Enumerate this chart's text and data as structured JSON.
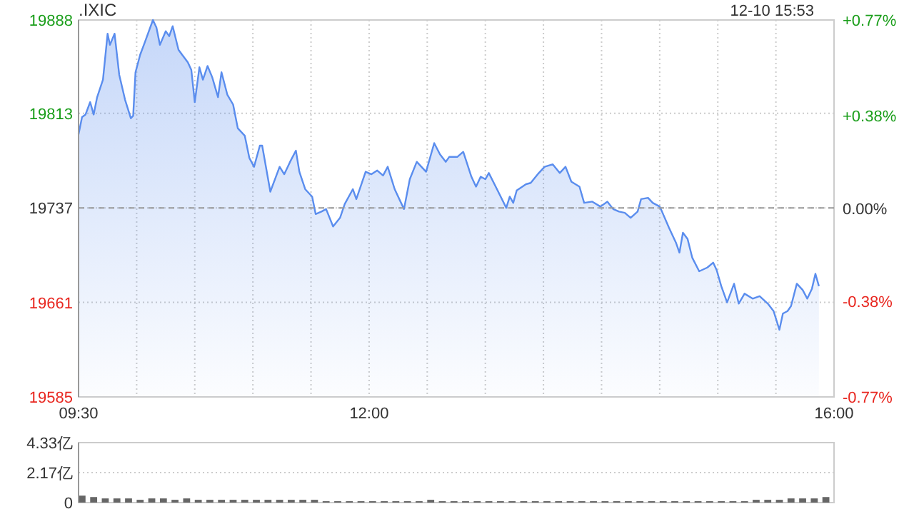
{
  "chart_data": [
    {
      "type": "area",
      "title": ".IXIC",
      "subtitle": "12-10 15:53",
      "xlim": [
        9.5,
        16
      ],
      "xticks": [
        {
          "value": 9.5,
          "label": "09:30"
        },
        {
          "value": 10,
          "label": null
        },
        {
          "value": 10.5,
          "label": null
        },
        {
          "value": 11,
          "label": null
        },
        {
          "value": 11.5,
          "label": null
        },
        {
          "value": 12,
          "label": "12:00"
        },
        {
          "value": 12.5,
          "label": null
        },
        {
          "value": 13,
          "label": null
        },
        {
          "value": 13.5,
          "label": null
        },
        {
          "value": 14,
          "label": null
        },
        {
          "value": 14.5,
          "label": null
        },
        {
          "value": 15,
          "label": null
        },
        {
          "value": 15.5,
          "label": null
        },
        {
          "value": 16,
          "label": "16:00"
        }
      ],
      "ylim": [
        19585,
        19888
      ],
      "yticks": [
        19585,
        19661,
        19737,
        19813,
        19888
      ],
      "y2lim": [
        -0.77,
        0.77
      ],
      "y2ticks": [
        {
          "value": -0.77,
          "label": "-0.77%"
        },
        {
          "value": -0.38,
          "label": "-0.38%"
        },
        {
          "value": 0,
          "label": "0.00%"
        },
        {
          "value": 0.38,
          "label": "+0.38%"
        },
        {
          "value": 0.77,
          "label": "+0.77%"
        }
      ],
      "grid": true,
      "ref_lines": [
        {
          "axis": "y",
          "value": 19737,
          "color": "#999999",
          "line_style": "dashed"
        }
      ],
      "series": [
        {
          "color": "#5a8dee",
          "x": [
            9.5,
            9.53,
            9.56,
            9.6,
            9.63,
            9.66,
            9.71,
            9.75,
            9.77,
            9.81,
            9.85,
            9.9,
            9.95,
            9.97,
            9.99,
            10.03,
            10.07,
            10.14,
            10.17,
            10.2,
            10.25,
            10.28,
            10.31,
            10.36,
            10.44,
            10.47,
            10.5,
            10.54,
            10.57,
            10.61,
            10.65,
            10.7,
            10.73,
            10.78,
            10.83,
            10.87,
            10.93,
            10.97,
            11.01,
            11.06,
            11.08,
            11.15,
            11.19,
            11.23,
            11.27,
            11.32,
            11.37,
            11.4,
            11.45,
            11.51,
            11.54,
            11.59,
            11.63,
            11.69,
            11.75,
            11.79,
            11.86,
            11.89,
            11.97,
            12.02,
            12.07,
            12.12,
            12.16,
            12.22,
            12.3,
            12.35,
            12.41,
            12.49,
            12.56,
            12.61,
            12.66,
            12.69,
            12.76,
            12.81,
            12.88,
            12.92,
            12.96,
            13,
            13.03,
            13.1,
            13.18,
            13.21,
            13.24,
            13.27,
            13.35,
            13.39,
            13.46,
            13.51,
            13.58,
            13.64,
            13.69,
            13.74,
            13.81,
            13.85,
            13.92,
            13.99,
            14.05,
            14.1,
            14.15,
            14.2,
            14.25,
            14.31,
            14.34,
            14.4,
            14.44,
            14.5,
            14.52,
            14.58,
            14.64,
            14.67,
            14.7,
            14.74,
            14.78,
            14.84,
            14.91,
            14.96,
            14.99,
            15.03,
            15.08,
            15.14,
            15.18,
            15.23,
            15.3,
            15.36,
            15.43,
            15.48,
            15.53,
            15.56,
            15.6,
            15.63,
            15.68,
            15.73,
            15.77,
            15.81,
            15.84,
            15.87
          ],
          "values": [
            19796,
            19810,
            19812,
            19822,
            19812,
            19826,
            19840,
            19877,
            19868,
            19877,
            19844,
            19824,
            19809,
            19811,
            19846,
            19860,
            19870,
            19888,
            19882,
            19868,
            19879,
            19875,
            19883,
            19864,
            19854,
            19848,
            19822,
            19850,
            19840,
            19851,
            19842,
            19826,
            19846,
            19828,
            19820,
            19801,
            19795,
            19777,
            19770,
            19787,
            19787,
            19750,
            19760,
            19770,
            19764,
            19774,
            19783,
            19766,
            19752,
            19746,
            19732,
            19734,
            19736,
            19722,
            19729,
            19740,
            19752,
            19744,
            19766,
            19764,
            19767,
            19763,
            19770,
            19752,
            19736,
            19760,
            19774,
            19766,
            19789,
            19780,
            19774,
            19778,
            19778,
            19782,
            19762,
            19754,
            19762,
            19760,
            19765,
            19752,
            19737,
            19746,
            19741,
            19751,
            19756,
            19757,
            19765,
            19770,
            19772,
            19765,
            19770,
            19758,
            19754,
            19741,
            19742,
            19738,
            19742,
            19736,
            19734,
            19733,
            19729,
            19734,
            19744,
            19745,
            19741,
            19738,
            19734,
            19721,
            19709,
            19701,
            19717,
            19712,
            19697,
            19686,
            19689,
            19693,
            19687,
            19674,
            19661,
            19676,
            19660,
            19668,
            19664,
            19666,
            19660,
            19654,
            19639,
            19652,
            19654,
            19658,
            19676,
            19671,
            19664,
            19672,
            19684,
            19674
          ]
        }
      ]
    },
    {
      "type": "bar",
      "tick_labels": "y",
      "grid": "y",
      "xlim": [
        9.5,
        16
      ],
      "ylim": [
        0,
        4.33
      ],
      "yticks": [
        0,
        {
          "value": 2.17,
          "label": "2.17亿"
        },
        {
          "value": 4.33,
          "label": "4.33亿"
        }
      ],
      "series": [
        {
          "color": "#666666",
          "x": [
            9.5,
            9.6,
            9.7,
            9.8,
            9.9,
            10,
            10.1,
            10.2,
            10.3,
            10.4,
            10.5,
            10.6,
            10.7,
            10.8,
            10.9,
            11,
            11.1,
            11.2,
            11.3,
            11.4,
            11.5,
            11.6,
            11.7,
            11.8,
            11.9,
            12,
            12.1,
            12.2,
            12.3,
            12.4,
            12.5,
            12.6,
            12.7,
            12.8,
            12.9,
            13,
            13.1,
            13.2,
            13.3,
            13.4,
            13.5,
            13.6,
            13.7,
            13.8,
            13.9,
            14,
            14.1,
            14.2,
            14.3,
            14.4,
            14.5,
            14.6,
            14.7,
            14.8,
            14.9,
            15,
            15.1,
            15.2,
            15.3,
            15.4,
            15.5,
            15.6,
            15.7,
            15.8,
            15.9
          ],
          "values": [
            0.5,
            0.4,
            0.3,
            0.3,
            0.3,
            0.2,
            0.3,
            0.3,
            0.2,
            0.3,
            0.2,
            0.2,
            0.2,
            0.2,
            0.2,
            0.2,
            0.2,
            0.2,
            0.2,
            0.2,
            0.2,
            0.1,
            0.1,
            0.1,
            0.1,
            0.1,
            0.1,
            0.1,
            0.1,
            0.1,
            0.2,
            0.1,
            0.1,
            0.1,
            0.1,
            0.1,
            0.1,
            0.1,
            0.1,
            0.1,
            0.1,
            0.1,
            0.1,
            0.1,
            0.1,
            0.1,
            0.1,
            0.1,
            0.1,
            0.1,
            0.1,
            0.1,
            0.1,
            0.1,
            0.1,
            0.1,
            0.1,
            0.1,
            0.2,
            0.2,
            0.2,
            0.3,
            0.3,
            0.3,
            0.4
          ]
        }
      ]
    }
  ]
}
